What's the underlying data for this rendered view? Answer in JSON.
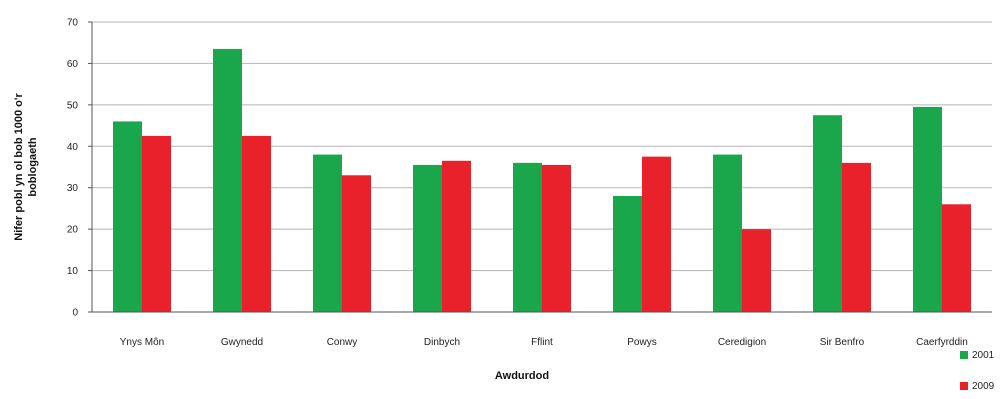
{
  "chart_data": {
    "type": "bar",
    "title": "",
    "xlabel": "Awdurdod",
    "ylabel_lines": [
      "Nifer pobl yn ol bob 1000 o'r",
      "boblogaeth"
    ],
    "ylim": [
      0,
      70
    ],
    "yticks": [
      0,
      10,
      20,
      30,
      40,
      50,
      60,
      70
    ],
    "grid": true,
    "legend_position": "bottom-right",
    "categories": [
      "Ynys Môn",
      "Gwynedd",
      "Conwy",
      "Dinbych",
      "Fflint",
      "Powys",
      "Ceredigion",
      "Sir Benfro",
      "Caerfyrddin"
    ],
    "series": [
      {
        "name": "2001",
        "legend_label": "2001",
        "color": "#1aa64a",
        "values": [
          46,
          63.5,
          38,
          35.5,
          36,
          28,
          38,
          47.5,
          49.5
        ]
      },
      {
        "name": "2009",
        "legend_label": "2009",
        "color": "#e8212a",
        "values": [
          42.5,
          42.5,
          33,
          36.5,
          35.5,
          37.5,
          20,
          36,
          26
        ]
      }
    ]
  }
}
